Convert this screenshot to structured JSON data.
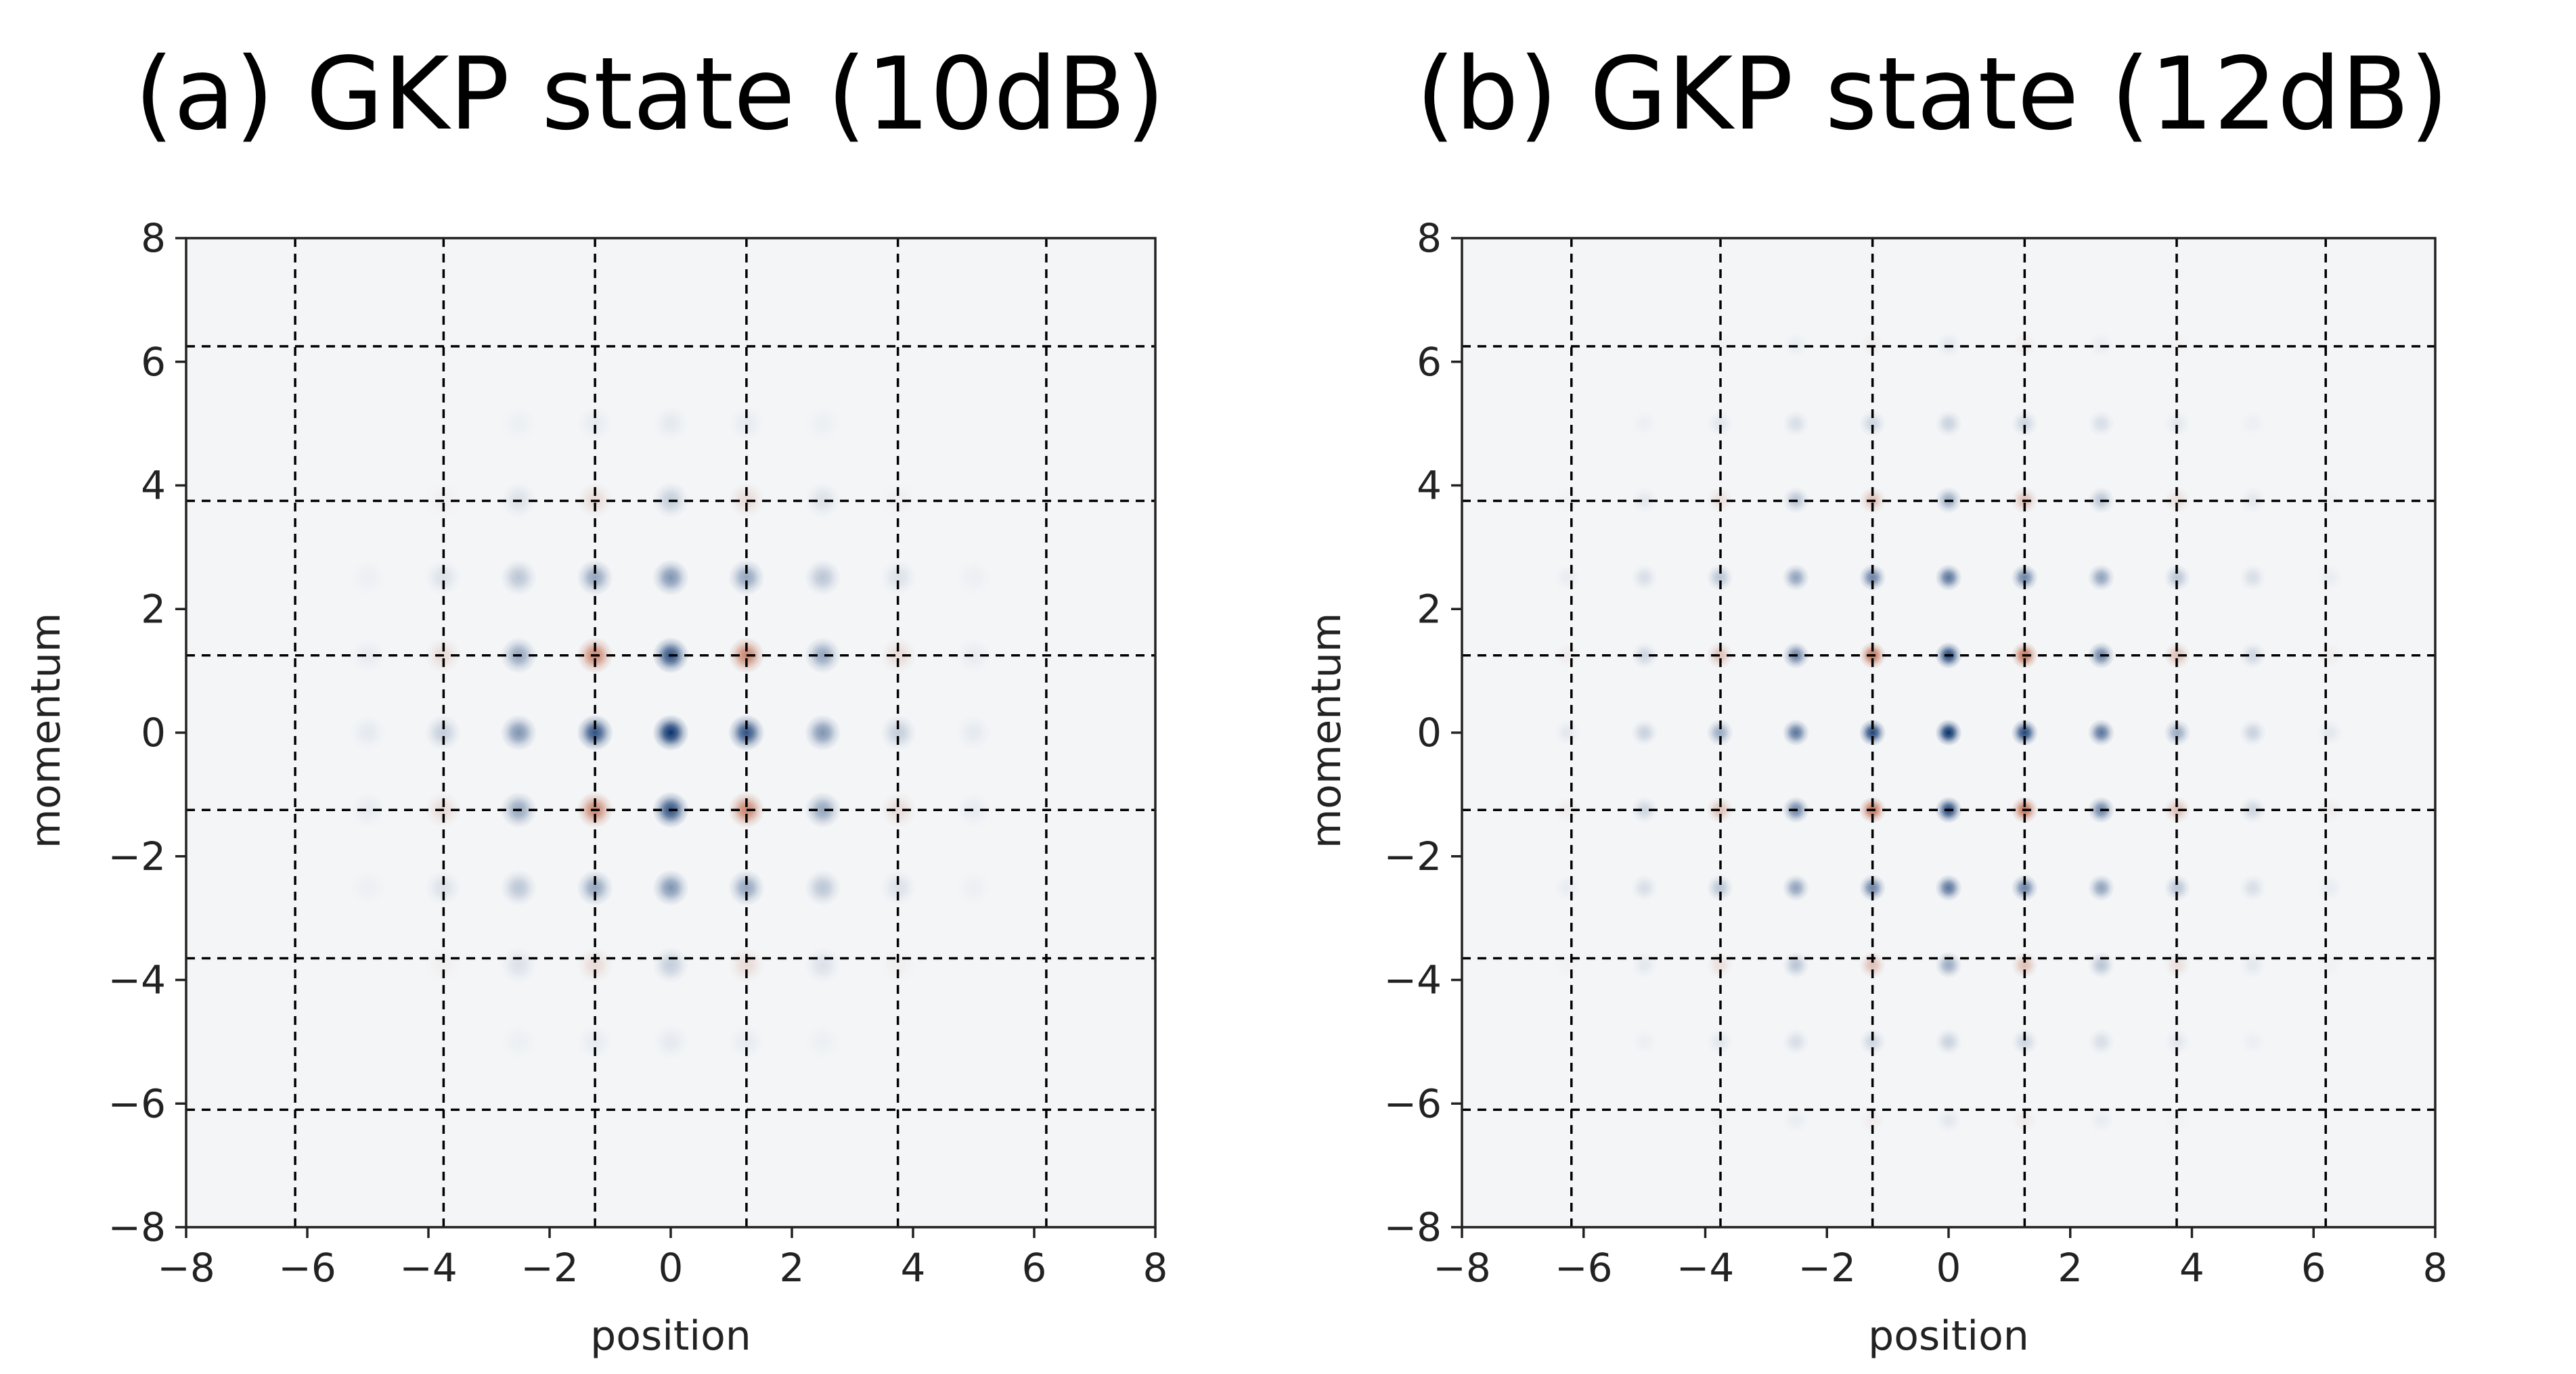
{
  "chart_data": [
    {
      "type": "heatmap",
      "title": "(a) GKP state (10dB)",
      "xlabel": "position",
      "ylabel": "momentum",
      "xlim": [
        -8,
        8
      ],
      "ylim": [
        -8,
        8
      ],
      "xticks": [
        -8,
        -6,
        -4,
        -2,
        0,
        2,
        4,
        6,
        8
      ],
      "yticks": [
        -8,
        -6,
        -4,
        -2,
        0,
        2,
        4,
        6,
        8
      ],
      "xtick_labels": [
        "−8",
        "−6",
        "−4",
        "−2",
        "0",
        "2",
        "4",
        "6",
        "8"
      ],
      "ytick_labels": [
        "−8",
        "−6",
        "−4",
        "−2",
        "0",
        "2",
        "4",
        "6",
        "8"
      ],
      "vlines": [
        -6.2,
        -3.75,
        -1.25,
        1.25,
        3.75,
        6.2
      ],
      "hlines": [
        6.25,
        3.75,
        1.25,
        -1.25,
        -3.65,
        -6.1
      ],
      "grid": false,
      "colormap": "RdBu",
      "colors": {
        "positive": "#08306b",
        "negative": "#b2421c",
        "background": "#f3f5f7"
      },
      "peak_spacing": 1.2533,
      "peaks_x": [
        -5.0,
        -3.76,
        -2.51,
        -1.25,
        0,
        1.25,
        2.51,
        3.76,
        5.0
      ],
      "peaks_y": [
        -5.0,
        -3.76,
        -2.51,
        -1.25,
        0,
        1.25,
        2.51,
        3.76,
        5.0
      ],
      "peak_width": 0.3,
      "envelope_sigma": 2.1
    },
    {
      "type": "heatmap",
      "title": "(b) GKP state (12dB)",
      "xlabel": "position",
      "ylabel": "momentum",
      "xlim": [
        -8,
        8
      ],
      "ylim": [
        -8,
        8
      ],
      "xticks": [
        -8,
        -6,
        -4,
        -2,
        0,
        2,
        4,
        6,
        8
      ],
      "yticks": [
        -8,
        -6,
        -4,
        -2,
        0,
        2,
        4,
        6,
        8
      ],
      "xtick_labels": [
        "−8",
        "−6",
        "−4",
        "−2",
        "0",
        "2",
        "4",
        "6",
        "8"
      ],
      "ytick_labels": [
        "−8",
        "−6",
        "−4",
        "−2",
        "0",
        "2",
        "4",
        "6",
        "8"
      ],
      "vlines": [
        -6.2,
        -3.75,
        -1.25,
        1.25,
        3.75,
        6.2
      ],
      "hlines": [
        6.25,
        3.75,
        1.25,
        -1.25,
        -3.65,
        -6.1
      ],
      "grid": false,
      "colormap": "RdBu",
      "colors": {
        "positive": "#08306b",
        "negative": "#b2421c",
        "background": "#f3f5f7"
      },
      "peak_spacing": 1.2533,
      "peaks_x": [
        -6.27,
        -5.0,
        -3.76,
        -2.51,
        -1.25,
        0,
        1.25,
        2.51,
        3.76,
        5.0,
        6.27
      ],
      "peaks_y": [
        -6.27,
        -5.0,
        -3.76,
        -2.51,
        -1.25,
        0,
        1.25,
        2.51,
        3.76,
        5.0,
        6.27
      ],
      "peak_width": 0.22,
      "envelope_sigma": 2.7
    }
  ]
}
